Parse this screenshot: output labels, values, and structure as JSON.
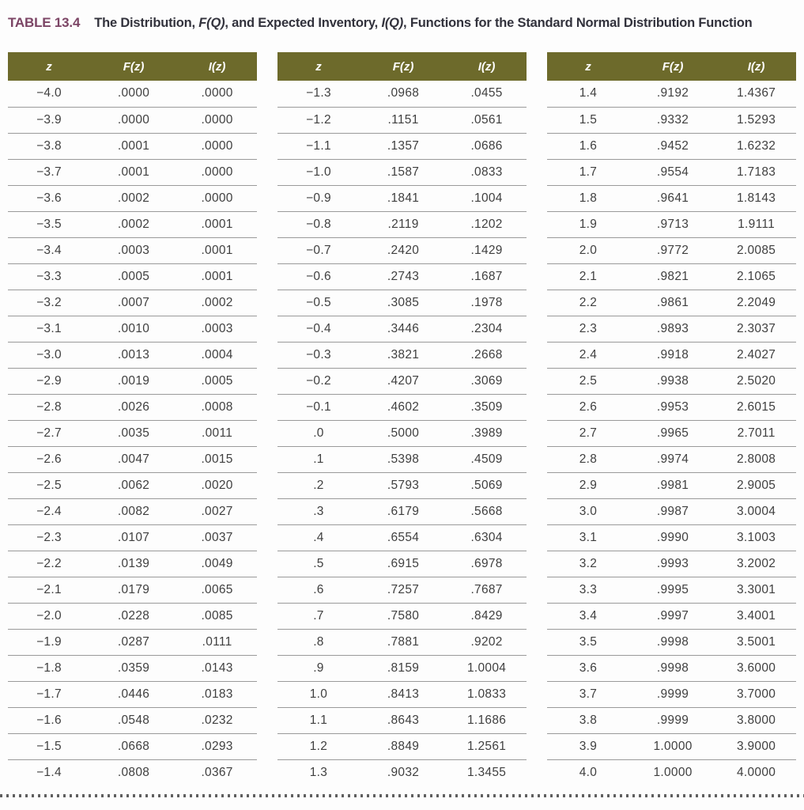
{
  "title": {
    "label": "TABLE 13.4",
    "part1": "The Distribution, ",
    "fq": "F(Q)",
    "part2": ", and Expected Inventory, ",
    "iq": "I(Q)",
    "part3": ", Functions for the Standard Normal Distribution Function"
  },
  "columns": [
    "z",
    "F(z)",
    "I(z)"
  ],
  "colors": {
    "header_bg": "#6d6a2b",
    "header_text": "#ffffff",
    "title_label": "#7c4565",
    "title_text": "#32323c",
    "body_text": "#3f3f3f",
    "row_separator": "#9a9a9a",
    "dotted_line": "#5f5f5f"
  },
  "tables": [
    {
      "rows": [
        [
          "−4.0",
          ".0000",
          ".0000"
        ],
        [
          "−3.9",
          ".0000",
          ".0000"
        ],
        [
          "−3.8",
          ".0001",
          ".0000"
        ],
        [
          "−3.7",
          ".0001",
          ".0000"
        ],
        [
          "−3.6",
          ".0002",
          ".0000"
        ],
        [
          "−3.5",
          ".0002",
          ".0001"
        ],
        [
          "−3.4",
          ".0003",
          ".0001"
        ],
        [
          "−3.3",
          ".0005",
          ".0001"
        ],
        [
          "−3.2",
          ".0007",
          ".0002"
        ],
        [
          "−3.1",
          ".0010",
          ".0003"
        ],
        [
          "−3.0",
          ".0013",
          ".0004"
        ],
        [
          "−2.9",
          ".0019",
          ".0005"
        ],
        [
          "−2.8",
          ".0026",
          ".0008"
        ],
        [
          "−2.7",
          ".0035",
          ".0011"
        ],
        [
          "−2.6",
          ".0047",
          ".0015"
        ],
        [
          "−2.5",
          ".0062",
          ".0020"
        ],
        [
          "−2.4",
          ".0082",
          ".0027"
        ],
        [
          "−2.3",
          ".0107",
          ".0037"
        ],
        [
          "−2.2",
          ".0139",
          ".0049"
        ],
        [
          "−2.1",
          ".0179",
          ".0065"
        ],
        [
          "−2.0",
          ".0228",
          ".0085"
        ],
        [
          "−1.9",
          ".0287",
          ".0111"
        ],
        [
          "−1.8",
          ".0359",
          ".0143"
        ],
        [
          "−1.7",
          ".0446",
          ".0183"
        ],
        [
          "−1.6",
          ".0548",
          ".0232"
        ],
        [
          "−1.5",
          ".0668",
          ".0293"
        ],
        [
          "−1.4",
          ".0808",
          ".0367"
        ]
      ]
    },
    {
      "rows": [
        [
          "−1.3",
          ".0968",
          ".0455"
        ],
        [
          "−1.2",
          ".1151",
          ".0561"
        ],
        [
          "−1.1",
          ".1357",
          ".0686"
        ],
        [
          "−1.0",
          ".1587",
          ".0833"
        ],
        [
          "−0.9",
          ".1841",
          ".1004"
        ],
        [
          "−0.8",
          ".2119",
          ".1202"
        ],
        [
          "−0.7",
          ".2420",
          ".1429"
        ],
        [
          "−0.6",
          ".2743",
          ".1687"
        ],
        [
          "−0.5",
          ".3085",
          ".1978"
        ],
        [
          "−0.4",
          ".3446",
          ".2304"
        ],
        [
          "−0.3",
          ".3821",
          ".2668"
        ],
        [
          "−0.2",
          ".4207",
          ".3069"
        ],
        [
          "−0.1",
          ".4602",
          ".3509"
        ],
        [
          ".0",
          ".5000",
          ".3989"
        ],
        [
          ".1",
          ".5398",
          ".4509"
        ],
        [
          ".2",
          ".5793",
          ".5069"
        ],
        [
          ".3",
          ".6179",
          ".5668"
        ],
        [
          ".4",
          ".6554",
          ".6304"
        ],
        [
          ".5",
          ".6915",
          ".6978"
        ],
        [
          ".6",
          ".7257",
          ".7687"
        ],
        [
          ".7",
          ".7580",
          ".8429"
        ],
        [
          ".8",
          ".7881",
          ".9202"
        ],
        [
          ".9",
          ".8159",
          "1.0004"
        ],
        [
          "1.0",
          ".8413",
          "1.0833"
        ],
        [
          "1.1",
          ".8643",
          "1.1686"
        ],
        [
          "1.2",
          ".8849",
          "1.2561"
        ],
        [
          "1.3",
          ".9032",
          "1.3455"
        ]
      ]
    },
    {
      "rows": [
        [
          "1.4",
          ".9192",
          "1.4367"
        ],
        [
          "1.5",
          ".9332",
          "1.5293"
        ],
        [
          "1.6",
          ".9452",
          "1.6232"
        ],
        [
          "1.7",
          ".9554",
          "1.7183"
        ],
        [
          "1.8",
          ".9641",
          "1.8143"
        ],
        [
          "1.9",
          ".9713",
          "1.9111"
        ],
        [
          "2.0",
          ".9772",
          "2.0085"
        ],
        [
          "2.1",
          ".9821",
          "2.1065"
        ],
        [
          "2.2",
          ".9861",
          "2.2049"
        ],
        [
          "2.3",
          ".9893",
          "2.3037"
        ],
        [
          "2.4",
          ".9918",
          "2.4027"
        ],
        [
          "2.5",
          ".9938",
          "2.5020"
        ],
        [
          "2.6",
          ".9953",
          "2.6015"
        ],
        [
          "2.7",
          ".9965",
          "2.7011"
        ],
        [
          "2.8",
          ".9974",
          "2.8008"
        ],
        [
          "2.9",
          ".9981",
          "2.9005"
        ],
        [
          "3.0",
          ".9987",
          "3.0004"
        ],
        [
          "3.1",
          ".9990",
          "3.1003"
        ],
        [
          "3.2",
          ".9993",
          "3.2002"
        ],
        [
          "3.3",
          ".9995",
          "3.3001"
        ],
        [
          "3.4",
          ".9997",
          "3.4001"
        ],
        [
          "3.5",
          ".9998",
          "3.5001"
        ],
        [
          "3.6",
          ".9998",
          "3.6000"
        ],
        [
          "3.7",
          ".9999",
          "3.7000"
        ],
        [
          "3.8",
          ".9999",
          "3.8000"
        ],
        [
          "3.9",
          "1.0000",
          "3.9000"
        ],
        [
          "4.0",
          "1.0000",
          "4.0000"
        ]
      ]
    }
  ]
}
